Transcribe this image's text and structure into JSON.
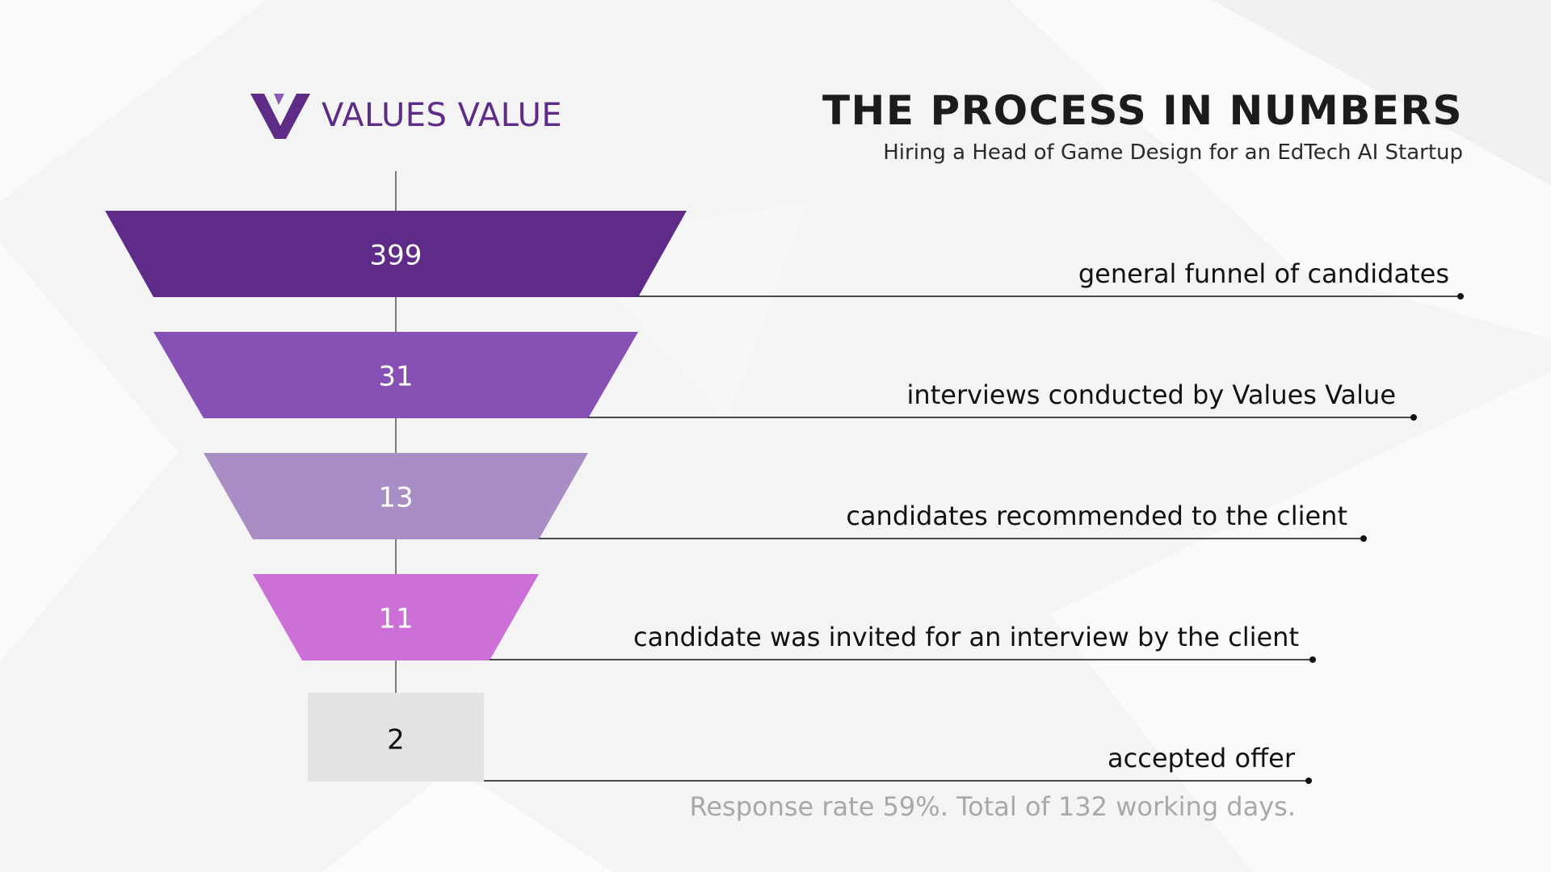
{
  "logo": {
    "name": "VALUES VALUE"
  },
  "header": {
    "title": "THE PROCESS IN NUMBERS",
    "subtitle": "Hiring a Head of Game Design for an EdTech AI Startup"
  },
  "chart_data": {
    "type": "funnel",
    "title": "THE PROCESS IN NUMBERS",
    "stages": [
      {
        "value": 399,
        "label": "general funnel of candidates",
        "color": "#5f2b88",
        "value_color": "#ffffff"
      },
      {
        "value": 31,
        "label": "interviews conducted by Values Value",
        "color": "#8650b4",
        "value_color": "#ffffff"
      },
      {
        "value": 13,
        "label": "candidates recommended to the client",
        "color": "#a98ec6",
        "value_color": "#ffffff"
      },
      {
        "value": 11,
        "label": "candidate was invited for an interview by the client",
        "color": "#cc6fd6",
        "value_color": "#ffffff"
      },
      {
        "value": 2,
        "label": "accepted offer",
        "color": "#e3e3e3",
        "value_color": "#111111"
      }
    ]
  },
  "footer": {
    "note": "Response rate 59%. Total of 132 working days."
  },
  "colors": {
    "brand": "#5e2b87",
    "text": "#1c1c1c",
    "muted": "#a8a8a8"
  }
}
